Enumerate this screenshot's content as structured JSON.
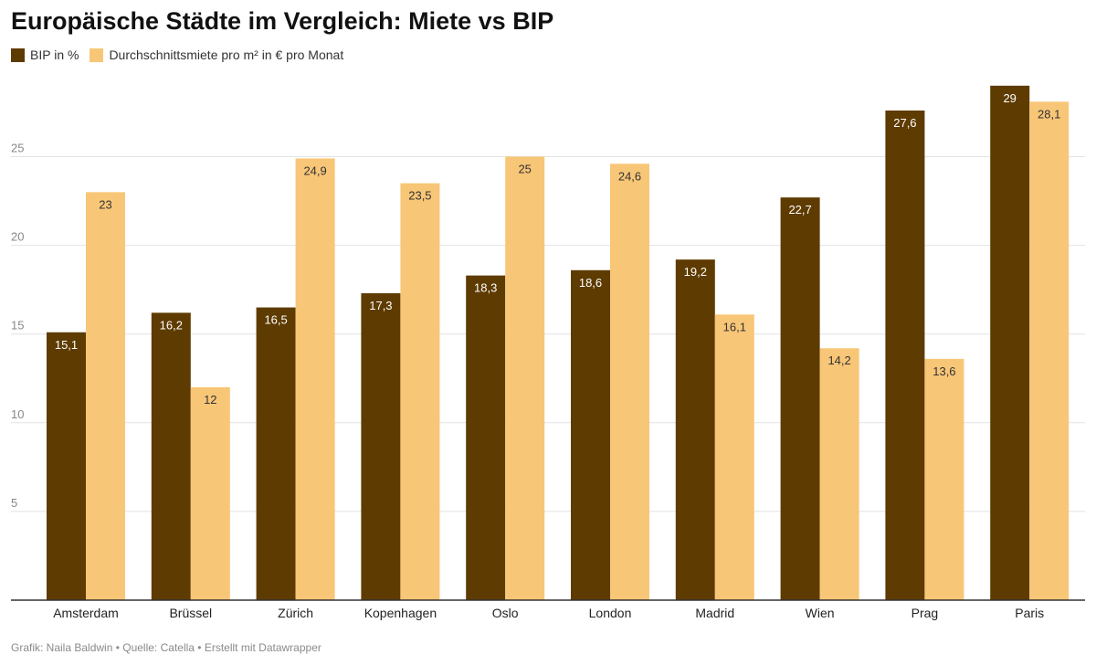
{
  "title": "Europäische Städte im Vergleich: Miete vs BIP",
  "footer": "Grafik: Naila Baldwin • Quelle: Catella • Erstellt mit Datawrapper",
  "colors": {
    "bip": "#5e3b00",
    "miete": "#f8c677",
    "grid": "#e2e2e2",
    "axis": "#333333"
  },
  "chart_data": {
    "type": "bar",
    "title": "Europäische Städte im Vergleich: Miete vs BIP",
    "xlabel": "",
    "ylabel": "",
    "ylim": [
      0,
      29
    ],
    "yticks": [
      5,
      10,
      15,
      20,
      25
    ],
    "grid": true,
    "legend_position": "top-left",
    "categories": [
      "Amsterdam",
      "Brüssel",
      "Zürich",
      "Kopenhagen",
      "Oslo",
      "London",
      "Madrid",
      "Wien",
      "Prag",
      "Paris"
    ],
    "series": [
      {
        "name": "BIP in %",
        "color": "#5e3b00",
        "values": [
          15.1,
          16.2,
          16.5,
          17.3,
          18.3,
          18.6,
          19.2,
          22.7,
          27.6,
          29
        ],
        "labels": [
          "15,1",
          "16,2",
          "16,5",
          "17,3",
          "18,3",
          "18,6",
          "19,2",
          "22,7",
          "27,6",
          "29"
        ]
      },
      {
        "name": "Durchschnittsmiete pro m² in € pro Monat",
        "color": "#f8c677",
        "values": [
          23,
          12,
          24.9,
          23.5,
          25,
          24.6,
          16.1,
          14.2,
          13.6,
          28.1
        ],
        "labels": [
          "23",
          "12",
          "24,9",
          "23,5",
          "25",
          "24,6",
          "16,1",
          "14,2",
          "13,6",
          "28,1"
        ]
      }
    ]
  }
}
